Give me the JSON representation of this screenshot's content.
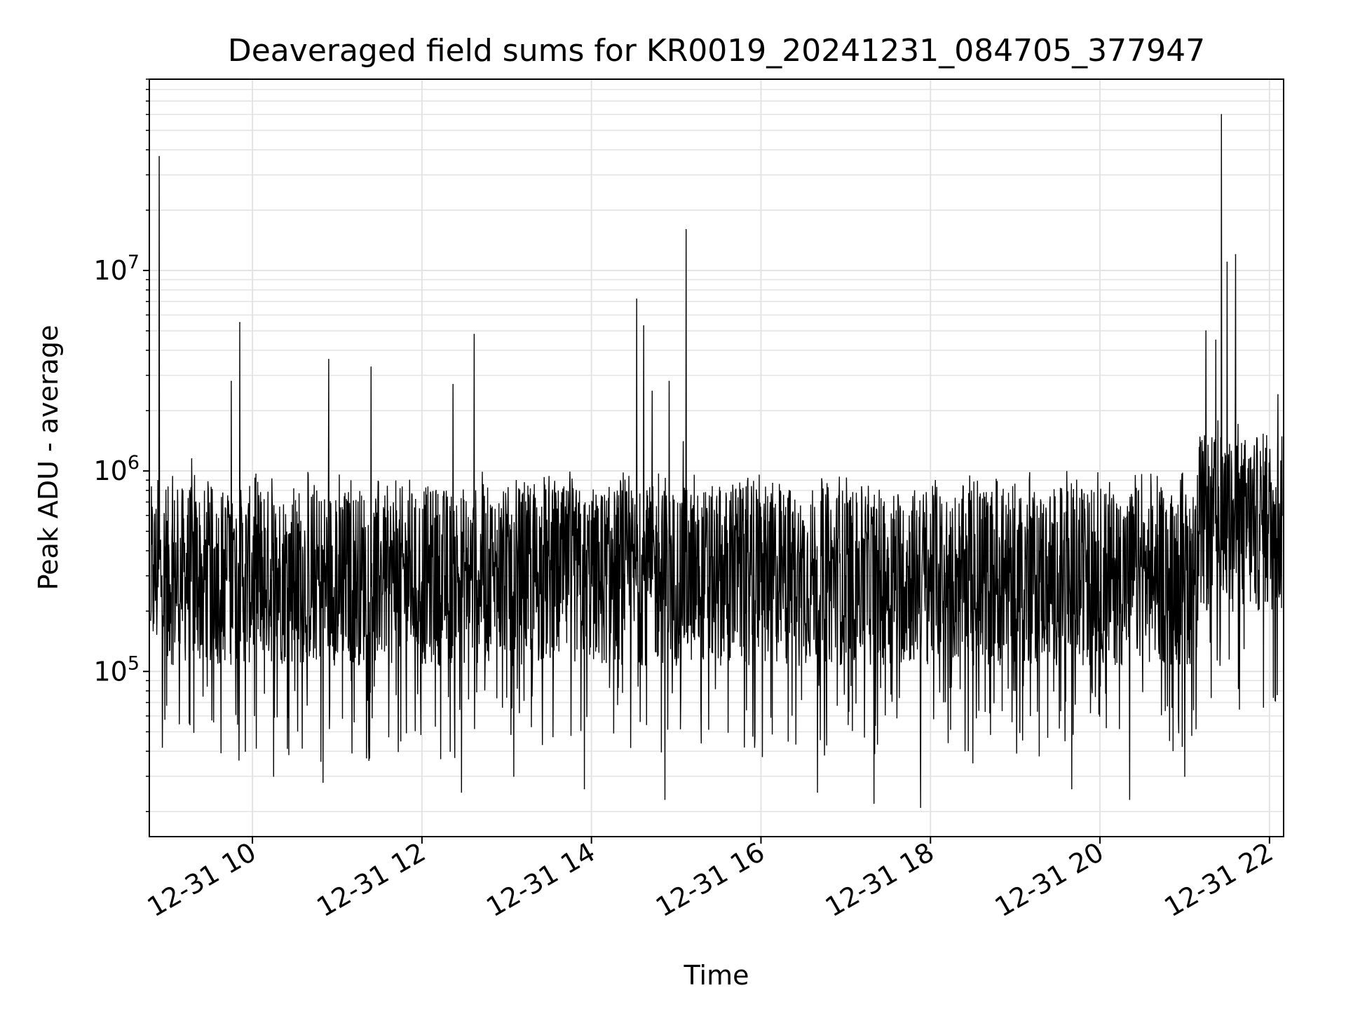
{
  "chart_data": {
    "type": "line",
    "title": "Deaveraged field sums for KR0019_20241231_084705_377947",
    "xlabel": "Time",
    "ylabel": "Peak ADU - average",
    "xlim": [
      "2024-12-31 08:47",
      "2024-12-31 22:10"
    ],
    "ylim": [
      15000,
      90000000
    ],
    "yscale": "log",
    "grid": true,
    "line_color": "#000000",
    "x_ticks": [
      "12-31 10",
      "12-31 12",
      "12-31 14",
      "12-31 16",
      "12-31 18",
      "12-31 20",
      "12-31 22"
    ],
    "y_ticks": [
      {
        "base": "10",
        "exp": "5",
        "value": 100000
      },
      {
        "base": "10",
        "exp": "6",
        "value": 1000000
      },
      {
        "base": "10",
        "exp": "7",
        "value": 10000000
      }
    ],
    "series": [
      {
        "name": "",
        "points": [
          [
            "2024-12-31 08:48",
            180000
          ],
          [
            "2024-12-31 08:50",
            340000
          ],
          [
            "2024-12-31 08:54",
            37000000
          ],
          [
            "2024-12-31 08:56",
            300000
          ],
          [
            "2024-12-31 09:00",
            120000
          ],
          [
            "2024-12-31 09:06",
            220000
          ],
          [
            "2024-12-31 09:14",
            600000
          ],
          [
            "2024-12-31 09:17",
            1150000
          ],
          [
            "2024-12-31 09:20",
            700000
          ],
          [
            "2024-12-31 09:30",
            280000
          ],
          [
            "2024-12-31 09:40",
            150000
          ],
          [
            "2024-12-31 09:45",
            2800000
          ],
          [
            "2024-12-31 09:48",
            140000
          ],
          [
            "2024-12-31 09:51",
            5500000
          ],
          [
            "2024-12-31 09:55",
            40000
          ],
          [
            "2024-12-31 10:05",
            250000
          ],
          [
            "2024-12-31 10:15",
            30000
          ],
          [
            "2024-12-31 10:25",
            260000
          ],
          [
            "2024-12-31 10:40",
            280000
          ],
          [
            "2024-12-31 10:50",
            28000
          ],
          [
            "2024-12-31 10:54",
            3600000
          ],
          [
            "2024-12-31 11:00",
            250000
          ],
          [
            "2024-12-31 11:10",
            90000
          ],
          [
            "2024-12-31 11:24",
            3300000
          ],
          [
            "2024-12-31 11:30",
            300000
          ],
          [
            "2024-12-31 11:45",
            45000
          ],
          [
            "2024-12-31 12:00",
            280000
          ],
          [
            "2024-12-31 12:10",
            800000
          ],
          [
            "2024-12-31 12:20",
            40000
          ],
          [
            "2024-12-31 12:22",
            2700000
          ],
          [
            "2024-12-31 12:28",
            25000
          ],
          [
            "2024-12-31 12:37",
            4800000
          ],
          [
            "2024-12-31 12:50",
            300000
          ],
          [
            "2024-12-31 13:05",
            30000
          ],
          [
            "2024-12-31 13:20",
            280000
          ],
          [
            "2024-12-31 13:35",
            700000
          ],
          [
            "2024-12-31 13:55",
            26000
          ],
          [
            "2024-12-31 14:10",
            300000
          ],
          [
            "2024-12-31 14:30",
            260000
          ],
          [
            "2024-12-31 14:32",
            7200000
          ],
          [
            "2024-12-31 14:37",
            5300000
          ],
          [
            "2024-12-31 14:43",
            2500000
          ],
          [
            "2024-12-31 14:52",
            23000
          ],
          [
            "2024-12-31 14:55",
            2800000
          ],
          [
            "2024-12-31 15:05",
            1400000
          ],
          [
            "2024-12-31 15:07",
            16000000
          ],
          [
            "2024-12-31 15:20",
            300000
          ],
          [
            "2024-12-31 15:40",
            850000
          ],
          [
            "2024-12-31 16:00",
            280000
          ],
          [
            "2024-12-31 16:20",
            800000
          ],
          [
            "2024-12-31 16:40",
            25000
          ],
          [
            "2024-12-31 17:00",
            300000
          ],
          [
            "2024-12-31 17:20",
            22000
          ],
          [
            "2024-12-31 17:40",
            300000
          ],
          [
            "2024-12-31 17:53",
            21000
          ],
          [
            "2024-12-31 18:10",
            300000
          ],
          [
            "2024-12-31 18:30",
            35000
          ],
          [
            "2024-12-31 18:50",
            260000
          ],
          [
            "2024-12-31 19:10",
            900000
          ],
          [
            "2024-12-31 19:30",
            250000
          ],
          [
            "2024-12-31 19:40",
            26000
          ],
          [
            "2024-12-31 19:50",
            280000
          ],
          [
            "2024-12-31 20:00",
            250000
          ],
          [
            "2024-12-31 20:20",
            300000
          ],
          [
            "2024-12-31 20:21",
            23000
          ],
          [
            "2024-12-31 20:25",
            950000
          ],
          [
            "2024-12-31 20:40",
            280000
          ],
          [
            "2024-12-31 20:57",
            900000
          ],
          [
            "2024-12-31 21:00",
            30000
          ],
          [
            "2024-12-31 21:10",
            300000
          ],
          [
            "2024-12-31 21:15",
            5000000
          ],
          [
            "2024-12-31 21:22",
            4500000
          ],
          [
            "2024-12-31 21:26",
            60000000
          ],
          [
            "2024-12-31 21:30",
            11000000
          ],
          [
            "2024-12-31 21:34",
            200000
          ],
          [
            "2024-12-31 21:36",
            12000000
          ],
          [
            "2024-12-31 21:42",
            130000
          ],
          [
            "2024-12-31 21:50",
            500000
          ],
          [
            "2024-12-31 21:58",
            1500000
          ],
          [
            "2024-12-31 22:03",
            700000
          ],
          [
            "2024-12-31 22:06",
            2400000
          ],
          [
            "2024-12-31 22:09",
            600000
          ]
        ]
      }
    ]
  }
}
